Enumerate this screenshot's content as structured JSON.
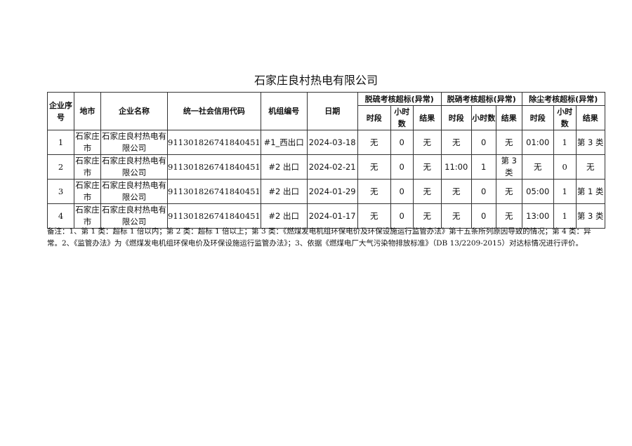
{
  "title": "石家庄良村热电有限公司",
  "headers": {
    "seq": "企业序号",
    "city": "地市",
    "name": "企业名称",
    "code": "统一社会信用代码",
    "unit": "机组编号",
    "date": "日期",
    "groups": [
      "脱硫考核超标(异常)",
      "脱硝考核超标(异常)",
      "除尘考核超标(异常)"
    ],
    "sub": [
      "时段",
      "小时数",
      "结果"
    ]
  },
  "rows": [
    {
      "seq": "1",
      "city": "石家庄市",
      "name": "石家庄良村热电有限公司",
      "code": "911301826741840451",
      "unit": "#1_西出口",
      "date": "2024-03-18",
      "v": [
        "无",
        "0",
        "无",
        "无",
        "0",
        "无",
        "01:00",
        "1",
        "第 3 类"
      ]
    },
    {
      "seq": "2",
      "city": "石家庄市",
      "name": "石家庄良村热电有限公司",
      "code": "911301826741840451",
      "unit": "#2 出口",
      "date": "2024-02-21",
      "v": [
        "无",
        "0",
        "无",
        "11:00",
        "1",
        "第 3 类",
        "无",
        "0",
        "无"
      ]
    },
    {
      "seq": "3",
      "city": "石家庄市",
      "name": "石家庄良村热电有限公司",
      "code": "911301826741840451",
      "unit": "#2 出口",
      "date": "2024-01-29",
      "v": [
        "无",
        "0",
        "无",
        "无",
        "0",
        "无",
        "05:00",
        "1",
        "第 1 类"
      ]
    },
    {
      "seq": "4",
      "city": "石家庄市",
      "name": "石家庄良村热电有限公司",
      "code": "911301826741840451",
      "unit": "#2 出口",
      "date": "2024-01-17",
      "v": [
        "无",
        "0",
        "无",
        "无",
        "0",
        "无",
        "13:00",
        "1",
        "第 3 类"
      ]
    }
  ],
  "note": "备注：1、第 1 类：超标 1 倍以内；第 2 类：超标 1 倍以上；第 3 类：《燃煤发电机组环保电价及环保设施运行监管办法》第十五条所列原因导致的情况；第 4 类：异常。2、《监管办法》为《燃煤发电机组环保电价及环保设施运行监管办法》；3、依据《燃煤电厂大气污染物排放标准》（DB 13/2209-2015）对达标情况进行评价。"
}
